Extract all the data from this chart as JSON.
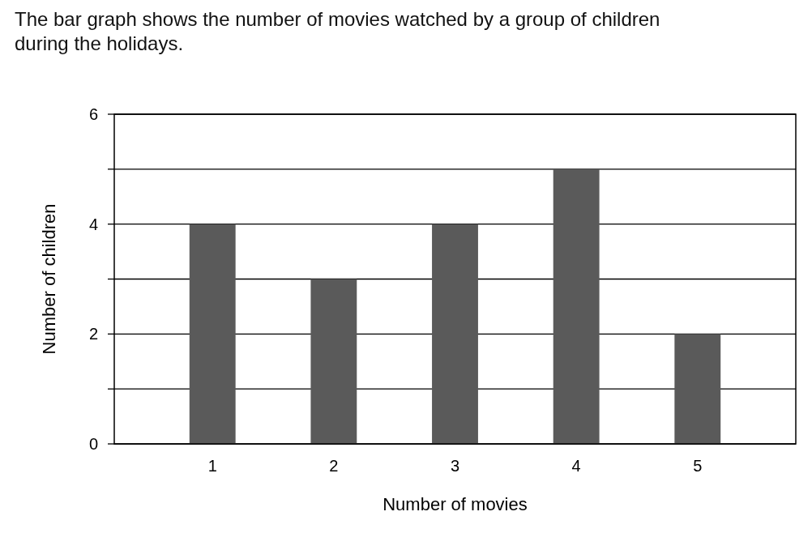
{
  "chart_data": {
    "type": "bar",
    "title": "The bar graph shows the number of movies watched by a group of children during the holidays.",
    "categories": [
      "1",
      "2",
      "3",
      "4",
      "5"
    ],
    "values": [
      4,
      3,
      4,
      5,
      2
    ],
    "color": "#5a5a5a",
    "xlabel": "Number of movies",
    "ylabel": "Number of children",
    "ylim": [
      0,
      6
    ],
    "yticks": [
      0,
      {
        "value": 1,
        "label": null
      },
      2,
      {
        "value": 3,
        "label": null
      },
      4,
      {
        "value": 5,
        "label": null
      },
      6
    ],
    "grid": "y"
  }
}
